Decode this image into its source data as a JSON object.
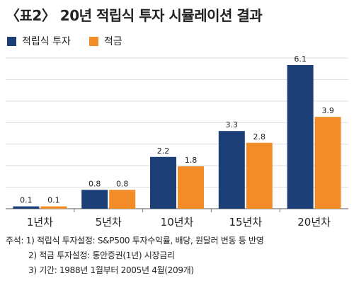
{
  "title": "〈표2〉 20년 적립식 투자 시뮬레이션 결과",
  "colors": {
    "series1": "#1c3f78",
    "series2": "#f28c28",
    "grid": "#dddddd",
    "axis": "#777777"
  },
  "chart_data": {
    "type": "bar",
    "categories": [
      "1년차",
      "5년차",
      "10년차",
      "15년차",
      "20년차"
    ],
    "series": [
      {
        "name": "적립식 투자",
        "values": [
          0.1,
          0.8,
          2.2,
          3.3,
          6.1
        ],
        "labels": [
          "0.1",
          "0.8",
          "2.2",
          "3.3",
          "6.1"
        ]
      },
      {
        "name": "적금",
        "values": [
          0.1,
          0.8,
          1.8,
          2.8,
          3.9
        ],
        "labels": [
          "0.1",
          "0.8",
          "1.8",
          "2.8",
          "3.9"
        ]
      }
    ],
    "ylim": [
      0,
      6.4
    ],
    "grid": true,
    "legend": "top-left"
  },
  "notes": {
    "line1": "주석: 1) 적립식 투자설정: S&P500 투자수익률, 배당, 원달러 변동 등 반영",
    "line2": "2) 적금 투자설정: 통안증권(1년) 시장금리",
    "line3": "3) 기간: 1988년 1월부터 2005년 4월(209개)"
  }
}
